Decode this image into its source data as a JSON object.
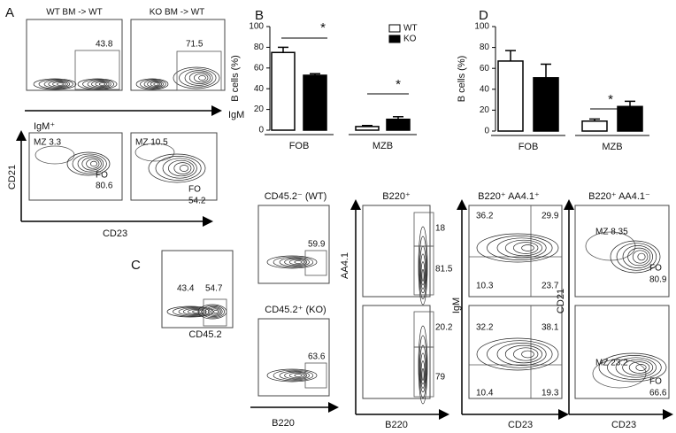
{
  "panels": {
    "A": {
      "label": "A",
      "titles": [
        "WT BM -> WT",
        "KO BM -> WT"
      ],
      "igm_gates": [
        "43.8",
        "71.5"
      ],
      "igm_x_label": "IgM",
      "gate_label": "IgM⁺",
      "mz": [
        "MZ 3.3",
        "MZ 10.5"
      ],
      "fo": [
        "FO",
        "FO"
      ],
      "fo_values": [
        "80.6",
        "54.2"
      ],
      "x_label": "CD23",
      "y_label": "CD21"
    },
    "C": {
      "label": "C",
      "cd45_values": [
        "43.4",
        "54.7"
      ],
      "cd45_x_label": "CD45.2",
      "b220_titles": [
        "CD45.2⁻ (WT)",
        "CD45.2⁺ (KO)"
      ],
      "b220_gates": [
        "59.9",
        "63.6"
      ],
      "b220_x_label": "B220",
      "aa41_title": "B220⁺",
      "aa41_gates": [
        [
          "18",
          "81.5"
        ],
        [
          "20.2",
          "79"
        ]
      ],
      "aa41_x_label": "B220",
      "aa41_y_label": "AA4.1",
      "igm_title": "B220⁺ AA4.1⁺",
      "igm_quadrants": [
        [
          "36.2",
          "29.9",
          "10.3",
          "23.7"
        ],
        [
          "32.2",
          "38.1",
          "10.4",
          "19.3"
        ]
      ],
      "igm_x_label": "CD23",
      "igm_y_label": "IgM",
      "cd21_title": "B220⁺ AA4.1⁻",
      "cd21_mz": [
        "MZ 8.35",
        "MZ 23.2"
      ],
      "cd21_fo": [
        "FO",
        "FO"
      ],
      "cd21_fo_values": [
        "80.9",
        "66.6"
      ],
      "cd21_x_label": "CD23",
      "cd21_y_label": "CD21"
    }
  },
  "chart_data": [
    {
      "type": "bar",
      "label": "B",
      "ylabel": "B cells (%)",
      "categories": [
        "FOB",
        "MZB"
      ],
      "series": [
        {
          "name": "WT",
          "color": "#ffffff",
          "values": [
            75,
            3.5
          ],
          "errors": [
            5,
            1
          ]
        },
        {
          "name": "KO",
          "color": "#000000",
          "values": [
            53,
            10.5
          ],
          "errors": [
            1.5,
            2.5
          ]
        }
      ],
      "ylim": [
        0,
        100
      ],
      "yticks": [
        0,
        20,
        40,
        60,
        80,
        100
      ],
      "legend": true,
      "annotations": [
        "*",
        "*"
      ]
    },
    {
      "type": "bar",
      "label": "D",
      "ylabel": "B cells (%)",
      "categories": [
        "FOB",
        "MZB"
      ],
      "series": [
        {
          "color": "#ffffff",
          "values": [
            67,
            9.5
          ],
          "errors": [
            10,
            2
          ]
        },
        {
          "color": "#000000",
          "values": [
            51,
            23.5
          ],
          "errors": [
            13,
            5
          ]
        }
      ],
      "ylim": [
        0,
        100
      ],
      "yticks": [
        0,
        20,
        40,
        60,
        80,
        100
      ],
      "legend": false,
      "annotations": [
        "*"
      ]
    }
  ]
}
